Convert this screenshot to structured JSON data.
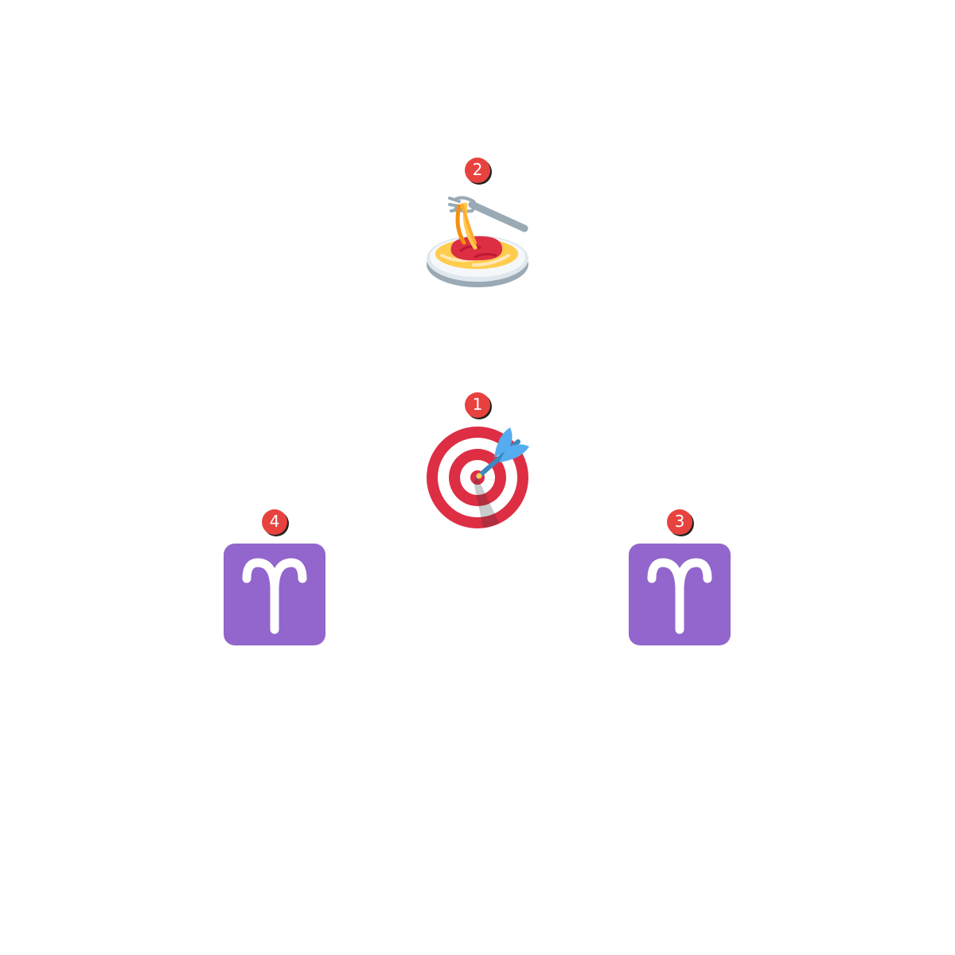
{
  "markers": [
    {
      "id": "1",
      "icon": "direct-hit-target-icon"
    },
    {
      "id": "2",
      "icon": "spaghetti-icon"
    },
    {
      "id": "3",
      "icon": "aries-icon"
    },
    {
      "id": "4",
      "icon": "aries-icon"
    }
  ],
  "colors": {
    "background": "#ffffff",
    "badge": "#e8423e",
    "target_red": "#dd2e44",
    "dart_blue": "#55acee",
    "aries_purple": "#9266cc",
    "plate_gray": "#99aab5",
    "sauce_red": "#dd2e44",
    "pasta_yellow": "#ffcc4d"
  }
}
